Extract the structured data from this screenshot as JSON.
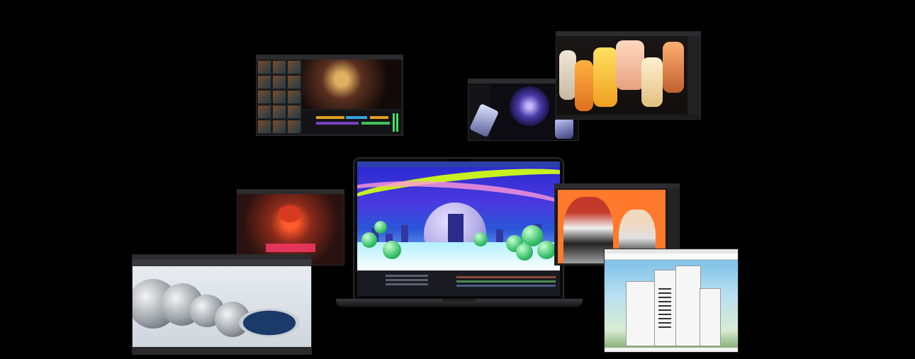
{
  "scene": {
    "background_color": "#000000"
  },
  "windows": [
    {
      "id": "video-editor",
      "icon": "video-timeline-icon"
    },
    {
      "id": "sculpt-app",
      "icon": "3d-model-icon"
    },
    {
      "id": "render-app",
      "icon": "render-icon"
    },
    {
      "id": "motion-graphics",
      "icon": "animation-icon"
    },
    {
      "id": "game-engine",
      "icon": "game-icon"
    },
    {
      "id": "photo-editor",
      "icon": "image-icon"
    },
    {
      "id": "3d-modeler",
      "icon": "cube-icon"
    },
    {
      "id": "architecture-app",
      "icon": "building-icon"
    }
  ],
  "colors": {
    "accent_lime": "#c8f020",
    "accent_pink": "#ff9ad8",
    "screen_blue": "#2b2bd0",
    "photo_orange": "#ff7a2c"
  }
}
